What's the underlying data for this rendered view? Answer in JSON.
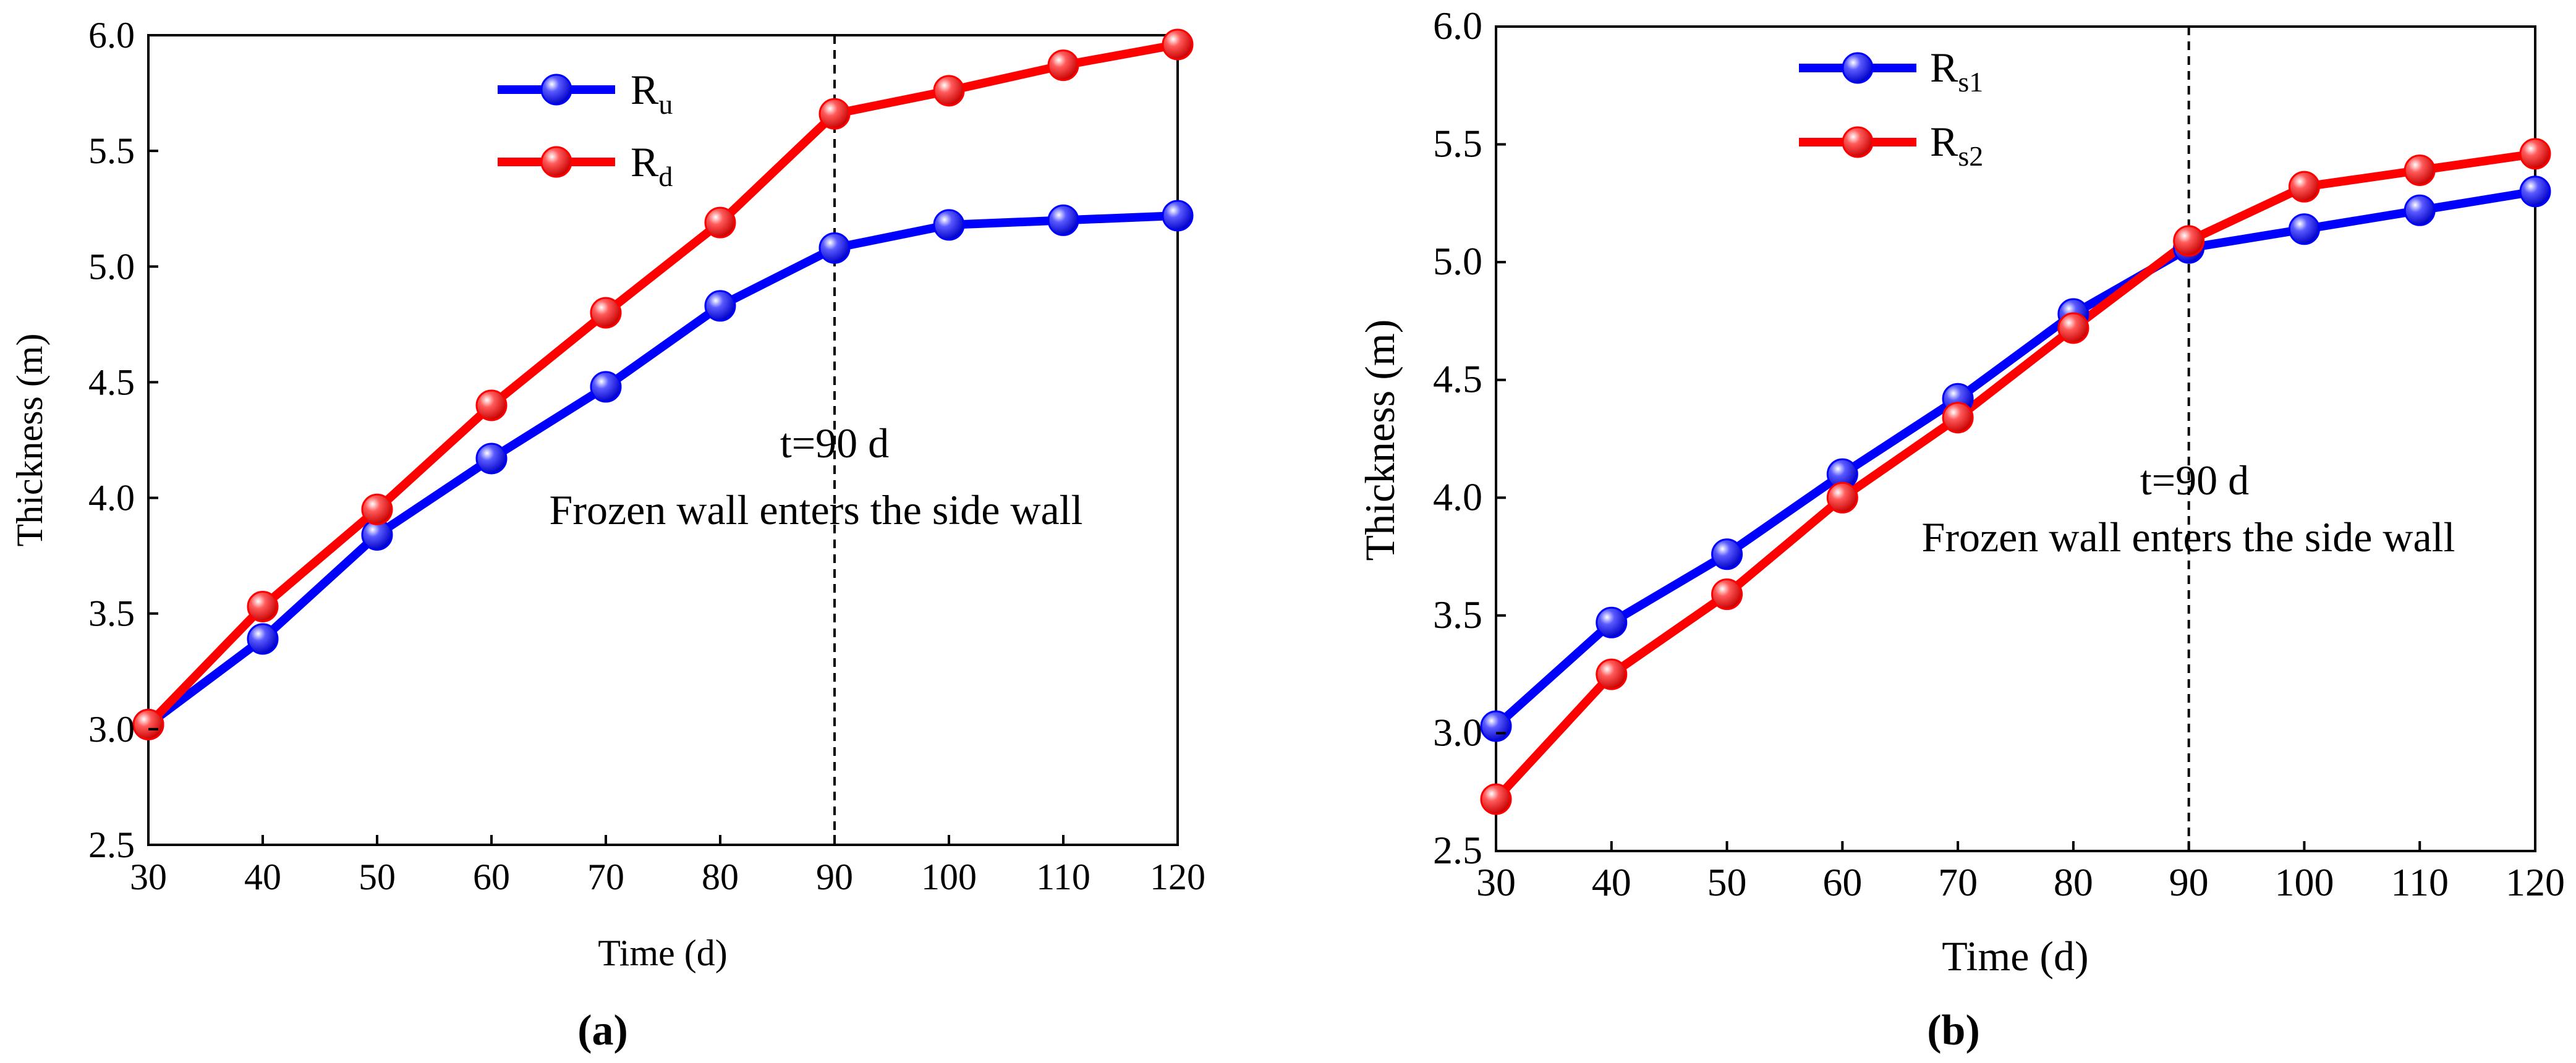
{
  "chart_data": [
    {
      "type": "line",
      "panel_label": "(a)",
      "x": [
        30,
        40,
        50,
        60,
        70,
        80,
        90,
        100,
        110,
        120
      ],
      "xticks": [
        "30",
        "40",
        "50",
        "60",
        "70",
        "80",
        "90",
        "100",
        "110",
        "120"
      ],
      "yticks": [
        "2.5",
        "3.0",
        "3.5",
        "4.0",
        "4.5",
        "5.0",
        "5.5",
        "6.0"
      ],
      "xlim": [
        30,
        120
      ],
      "ylim": [
        2.5,
        6.0
      ],
      "xlabel": "Time (d)",
      "ylabel": "Thickness (m)",
      "legend_position": "top-center",
      "series": [
        {
          "name": "R",
          "sub": "u",
          "color": "#0000ff",
          "values": [
            3.02,
            3.39,
            3.84,
            4.17,
            4.48,
            4.83,
            5.08,
            5.18,
            5.2,
            5.22
          ]
        },
        {
          "name": "R",
          "sub": "d",
          "color": "#ff0000",
          "values": [
            3.02,
            3.53,
            3.95,
            4.4,
            4.8,
            5.19,
            5.66,
            5.76,
            5.87,
            5.96
          ]
        }
      ],
      "vline": {
        "x": 90
      },
      "annotation": {
        "line1": "t=90 d",
        "line2": "Frozen wall enters the side wall"
      }
    },
    {
      "type": "line",
      "panel_label": "(b)",
      "x": [
        30,
        40,
        50,
        60,
        70,
        80,
        90,
        100,
        110,
        120
      ],
      "xticks": [
        "30",
        "40",
        "50",
        "60",
        "70",
        "80",
        "90",
        "100",
        "110",
        "120"
      ],
      "yticks": [
        "2.5",
        "3.0",
        "3.5",
        "4.0",
        "4.5",
        "5.0",
        "5.5",
        "6.0"
      ],
      "xlim": [
        30,
        120
      ],
      "ylim": [
        2.5,
        6.0
      ],
      "xlabel": "Time (d)",
      "ylabel": "Thickness (m)",
      "legend_position": "top-left",
      "series": [
        {
          "name": "R",
          "sub": "s1",
          "color": "#0000ff",
          "values": [
            3.03,
            3.47,
            3.76,
            4.1,
            4.42,
            4.78,
            5.06,
            5.14,
            5.22,
            5.3
          ]
        },
        {
          "name": "R",
          "sub": "s2",
          "color": "#ff0000",
          "values": [
            2.72,
            3.25,
            3.59,
            4.0,
            4.34,
            4.72,
            5.09,
            5.32,
            5.39,
            5.46
          ]
        }
      ],
      "vline": {
        "x": 90
      },
      "annotation": {
        "line1": "t=90 d",
        "line2": "Frozen wall enters the side wall"
      }
    }
  ]
}
